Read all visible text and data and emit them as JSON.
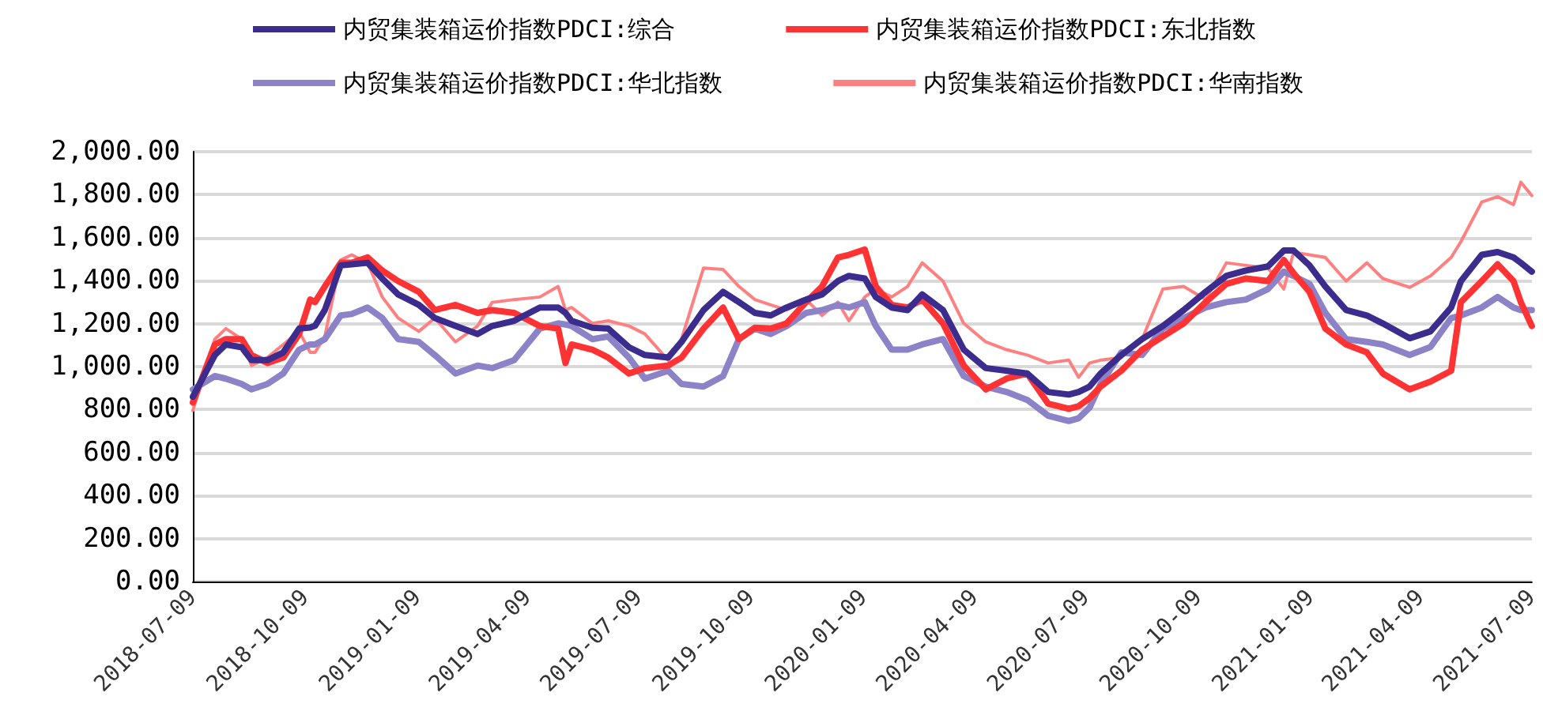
{
  "chart_data": {
    "type": "line",
    "legend": "top",
    "grid": "y",
    "marker": "none",
    "line_style": "solid",
    "x": [
      "2018-07-09",
      "2018-07-27",
      "2018-08-05",
      "2018-08-18",
      "2018-08-26",
      "2018-09-08",
      "2018-09-21",
      "2018-10-04",
      "2018-10-13",
      "2018-10-17",
      "2018-10-25",
      "2018-11-07",
      "2018-11-16",
      "2018-11-29",
      "2018-12-11",
      "2018-12-24",
      "2019-01-10",
      "2019-01-23",
      "2019-02-09",
      "2019-02-27",
      "2019-03-11",
      "2019-03-29",
      "2019-04-19",
      "2019-05-04",
      "2019-05-10",
      "2019-05-15",
      "2019-06-01",
      "2019-06-14",
      "2019-07-01",
      "2019-07-14",
      "2019-08-02",
      "2019-08-13",
      "2019-08-31",
      "2019-09-16",
      "2019-09-29",
      "2019-10-12",
      "2019-10-25",
      "2019-11-07",
      "2019-11-23",
      "2019-12-06",
      "2019-12-19",
      "2019-12-28",
      "2020-01-10",
      "2020-01-19",
      "2020-02-01",
      "2020-02-14",
      "2020-02-26",
      "2020-03-14",
      "2020-03-31",
      "2020-04-18",
      "2020-05-05",
      "2020-05-22",
      "2020-06-08",
      "2020-06-25",
      "2020-07-03",
      "2020-07-12",
      "2020-07-21",
      "2020-08-07",
      "2020-08-24",
      "2020-09-10",
      "2020-09-27",
      "2020-10-15",
      "2020-11-01",
      "2020-11-17",
      "2020-12-05",
      "2020-12-18",
      "2020-12-26",
      "2021-01-08",
      "2021-01-21",
      "2021-02-07",
      "2021-02-24",
      "2021-03-09",
      "2021-03-31",
      "2021-04-17",
      "2021-05-04",
      "2021-05-12",
      "2021-05-29",
      "2021-06-11",
      "2021-06-24",
      "2021-06-30",
      "2021-07-09"
    ],
    "series": [
      {
        "name": "内贸集装箱运价指数PDCI:综合",
        "color": "#3b2c8e",
        "values": [
          860,
          1054,
          1103,
          1090,
          1030,
          1030,
          1066,
          1177,
          1182,
          1190,
          1263,
          1471,
          1476,
          1483,
          1410,
          1336,
          1287,
          1226,
          1189,
          1152,
          1189,
          1213,
          1275,
          1275,
          1250,
          1213,
          1181,
          1177,
          1090,
          1054,
          1042,
          1115,
          1263,
          1348,
          1300,
          1250,
          1238,
          1275,
          1312,
          1336,
          1398,
          1422,
          1410,
          1324,
          1275,
          1263,
          1336,
          1263,
          1079,
          993,
          981,
          968,
          882,
          870,
          882,
          907,
          968,
          1054,
          1128,
          1189,
          1263,
          1348,
          1422,
          1447,
          1466,
          1540,
          1540,
          1471,
          1373,
          1263,
          1238,
          1201,
          1132,
          1164,
          1275,
          1398,
          1520,
          1533,
          1508,
          1483,
          1442
        ]
      },
      {
        "name": "内贸集装箱运价指数PDCI:东北指数",
        "color": "#ff3333",
        "values": [
          833,
          1103,
          1128,
          1128,
          1054,
          1017,
          1042,
          1152,
          1312,
          1300,
          1373,
          1483,
          1483,
          1508,
          1447,
          1398,
          1348,
          1263,
          1287,
          1250,
          1263,
          1250,
          1189,
          1177,
          1017,
          1103,
          1079,
          1042,
          968,
          993,
          1005,
          1042,
          1177,
          1275,
          1128,
          1181,
          1177,
          1201,
          1300,
          1373,
          1508,
          1520,
          1545,
          1373,
          1287,
          1275,
          1312,
          1201,
          1005,
          894,
          944,
          968,
          828,
          804,
          816,
          853,
          907,
          981,
          1079,
          1140,
          1201,
          1300,
          1385,
          1410,
          1398,
          1496,
          1434,
          1348,
          1177,
          1103,
          1066,
          968,
          894,
          930,
          981,
          1300,
          1398,
          1476,
          1398,
          1300,
          1189
        ]
      },
      {
        "name": "内贸集装箱运价指数PDCI:华北指数",
        "color": "#8c82c8",
        "values": [
          894,
          956,
          944,
          919,
          894,
          919,
          968,
          1079,
          1103,
          1103,
          1128,
          1238,
          1245,
          1275,
          1226,
          1128,
          1115,
          1054,
          968,
          1005,
          993,
          1030,
          1177,
          1201,
          1196,
          1189,
          1128,
          1140,
          1042,
          944,
          981,
          919,
          907,
          956,
          1128,
          1177,
          1152,
          1189,
          1250,
          1263,
          1287,
          1275,
          1300,
          1189,
          1079,
          1079,
          1103,
          1128,
          956,
          907,
          882,
          845,
          772,
          747,
          760,
          809,
          919,
          1066,
          1054,
          1177,
          1226,
          1275,
          1300,
          1312,
          1361,
          1442,
          1422,
          1385,
          1250,
          1128,
          1115,
          1103,
          1054,
          1091,
          1226,
          1238,
          1275,
          1324,
          1275,
          1263,
          1263
        ]
      },
      {
        "name": "内贸集装箱运价指数PDCI:华南指数",
        "color": "#ff8080",
        "values": [
          796,
          1128,
          1177,
          1128,
          1005,
          1042,
          1103,
          1164,
          1066,
          1066,
          1140,
          1496,
          1520,
          1483,
          1324,
          1226,
          1164,
          1226,
          1115,
          1189,
          1299,
          1312,
          1324,
          1373,
          1263,
          1275,
          1201,
          1213,
          1189,
          1152,
          1030,
          1128,
          1459,
          1452,
          1373,
          1312,
          1287,
          1263,
          1312,
          1238,
          1300,
          1213,
          1324,
          1361,
          1324,
          1373,
          1483,
          1398,
          1201,
          1115,
          1079,
          1054,
          1017,
          1030,
          950,
          1017,
          1030,
          1042,
          1128,
          1361,
          1373,
          1312,
          1483,
          1471,
          1459,
          1361,
          1532,
          1520,
          1508,
          1398,
          1483,
          1410,
          1369,
          1422,
          1508,
          1582,
          1766,
          1791,
          1754,
          1858,
          1796
        ]
      }
    ],
    "ylim": [
      0,
      2000
    ],
    "yticks": [
      {
        "value": 0,
        "label": "0.00"
      },
      {
        "value": 200,
        "label": "200.00"
      },
      {
        "value": 400,
        "label": "400.00"
      },
      {
        "value": 600,
        "label": "600.00"
      },
      {
        "value": 800,
        "label": "800.00"
      },
      {
        "value": 1000,
        "label": "1,000.00"
      },
      {
        "value": 1200,
        "label": "1,200.00"
      },
      {
        "value": 1400,
        "label": "1,400.00"
      },
      {
        "value": 1600,
        "label": "1,600.00"
      },
      {
        "value": 1800,
        "label": "1,800.00"
      },
      {
        "value": 2000,
        "label": "2,000.00"
      }
    ],
    "xlim": [
      "2018-07-09",
      "2021-07-09"
    ],
    "xticks": [
      "2018-07-09",
      "2018-10-09",
      "2019-01-09",
      "2019-04-09",
      "2019-07-09",
      "2019-10-09",
      "2020-01-09",
      "2020-04-09",
      "2020-07-09",
      "2020-10-09",
      "2021-01-09",
      "2021-04-09",
      "2021-07-09"
    ]
  }
}
